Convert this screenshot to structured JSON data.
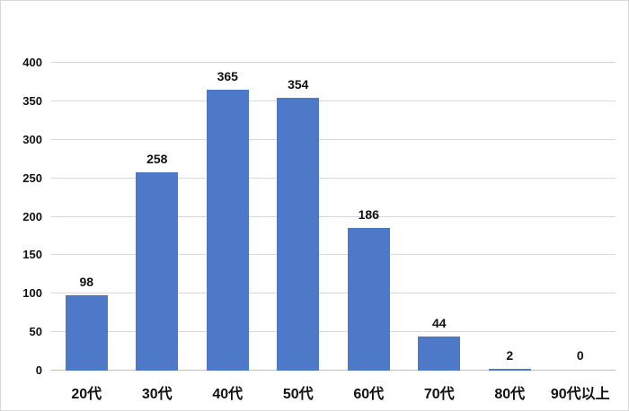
{
  "chart_data": {
    "type": "bar",
    "categories": [
      "20代",
      "30代",
      "40代",
      "50代",
      "60代",
      "70代",
      "80代",
      "90代以上"
    ],
    "values": [
      98,
      258,
      365,
      354,
      186,
      44,
      2,
      0
    ],
    "title": "",
    "xlabel": "",
    "ylabel": "",
    "ylim": [
      0,
      400
    ],
    "yticks": [
      0,
      50,
      100,
      150,
      200,
      250,
      300,
      350,
      400
    ],
    "grid": true,
    "legend": false,
    "data_labels": "outside-end",
    "colors": {
      "bar": "#4e78c8",
      "gridline": "#d9d9d9",
      "axis_line": "#bfbfbf",
      "tick_label": "#111111",
      "data_label": "#111111",
      "background": "#ffffff",
      "chart_border": "#d8d8d8"
    }
  }
}
